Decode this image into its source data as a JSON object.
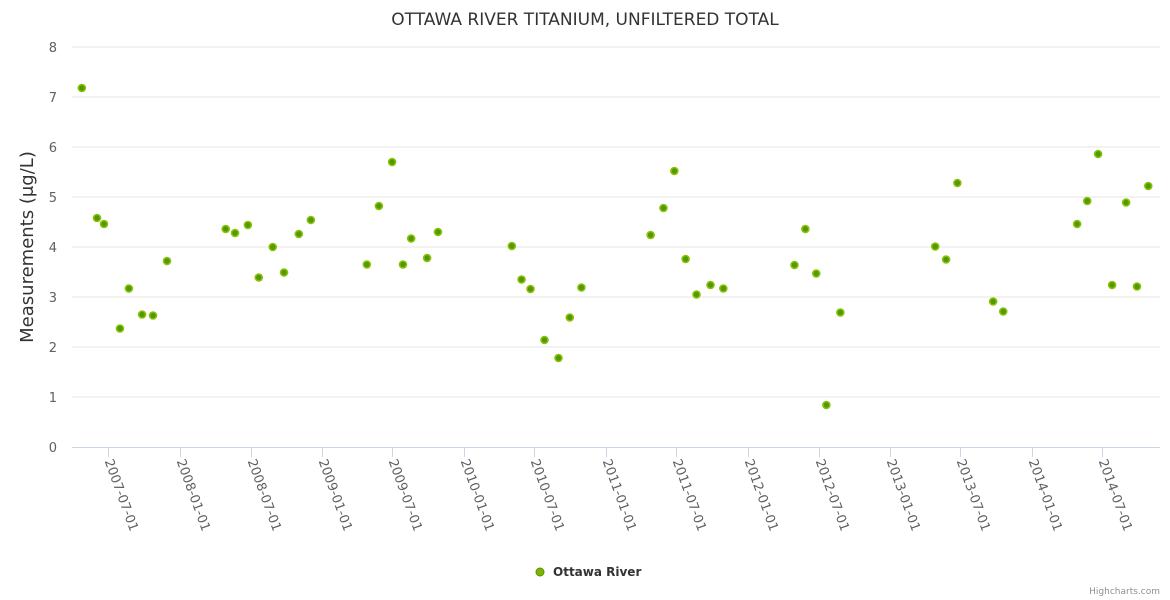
{
  "chart_data": {
    "type": "scatter",
    "title": "OTTAWA RIVER TITANIUM, UNFILTERED TOTAL",
    "xlabel": "",
    "ylabel": "Measurements (μg/L)",
    "ylim": [
      0,
      8
    ],
    "yticks": [
      "0",
      "1",
      "2",
      "3",
      "4",
      "5",
      "6",
      "7",
      "8"
    ],
    "xticks": [
      "2007-07-01",
      "2008-01-01",
      "2008-07-01",
      "2009-01-01",
      "2009-07-01",
      "2010-01-01",
      "2010-07-01",
      "2011-01-01",
      "2011-07-01",
      "2012-01-01",
      "2012-07-01",
      "2013-01-01",
      "2013-07-01",
      "2014-01-01",
      "2014-07-01"
    ],
    "grid": true,
    "legend_position": "bottom-center",
    "color": "#7cb500",
    "credits": "Highcharts.com",
    "series": [
      {
        "name": "Ottawa River",
        "points": [
          [
            "2007-04-24",
            7.18
          ],
          [
            "2007-06-02",
            4.58
          ],
          [
            "2007-06-20",
            4.46
          ],
          [
            "2007-07-31",
            2.37
          ],
          [
            "2007-08-23",
            3.17
          ],
          [
            "2007-09-26",
            2.65
          ],
          [
            "2007-10-24",
            2.63
          ],
          [
            "2007-11-29",
            3.72
          ],
          [
            "2008-04-28",
            4.36
          ],
          [
            "2008-05-22",
            4.28
          ],
          [
            "2008-06-24",
            4.44
          ],
          [
            "2008-07-22",
            3.39
          ],
          [
            "2008-08-27",
            4.0
          ],
          [
            "2008-09-25",
            3.49
          ],
          [
            "2008-11-02",
            4.26
          ],
          [
            "2008-12-03",
            4.54
          ],
          [
            "2009-04-26",
            3.65
          ],
          [
            "2009-05-27",
            4.82
          ],
          [
            "2009-06-30",
            5.7
          ],
          [
            "2009-07-28",
            3.65
          ],
          [
            "2009-08-18",
            4.17
          ],
          [
            "2009-09-28",
            3.78
          ],
          [
            "2009-10-26",
            4.3
          ],
          [
            "2010-05-04",
            4.02
          ],
          [
            "2010-05-29",
            3.35
          ],
          [
            "2010-06-21",
            3.16
          ],
          [
            "2010-07-27",
            2.14
          ],
          [
            "2010-09-01",
            1.78
          ],
          [
            "2010-09-30",
            2.59
          ],
          [
            "2010-10-30",
            3.19
          ],
          [
            "2011-04-26",
            4.24
          ],
          [
            "2011-05-29",
            4.78
          ],
          [
            "2011-06-26",
            5.52
          ],
          [
            "2011-07-25",
            3.76
          ],
          [
            "2011-08-22",
            3.05
          ],
          [
            "2011-09-27",
            3.24
          ],
          [
            "2011-10-30",
            3.17
          ],
          [
            "2012-04-30",
            3.64
          ],
          [
            "2012-05-28",
            4.36
          ],
          [
            "2012-06-25",
            3.47
          ],
          [
            "2012-07-21",
            0.84
          ],
          [
            "2012-08-26",
            2.69
          ],
          [
            "2013-04-27",
            4.01
          ],
          [
            "2013-05-25",
            3.75
          ],
          [
            "2013-06-23",
            5.28
          ],
          [
            "2013-09-23",
            2.91
          ],
          [
            "2013-10-19",
            2.71
          ],
          [
            "2014-04-27",
            4.46
          ],
          [
            "2014-05-23",
            4.92
          ],
          [
            "2014-06-20",
            5.86
          ],
          [
            "2014-07-26",
            3.24
          ],
          [
            "2014-08-31",
            4.89
          ],
          [
            "2014-09-28",
            3.21
          ],
          [
            "2014-10-27",
            5.22
          ]
        ]
      }
    ]
  }
}
